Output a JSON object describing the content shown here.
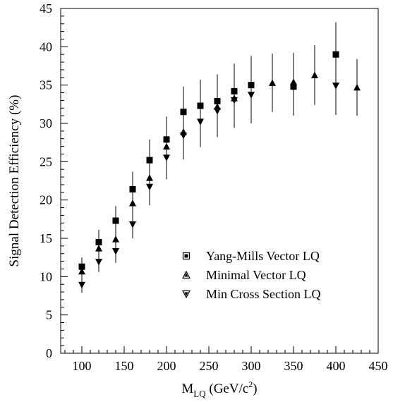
{
  "chart_data": {
    "type": "scatter",
    "xlabel": {
      "main": "M",
      "sub": "LQ",
      "unit_pre": " (GeV/c",
      "sup": "2",
      "unit_post": ")"
    },
    "ylabel": "Signal Detection Efficiency (%)",
    "xlim": [
      75,
      450
    ],
    "ylim": [
      0,
      45
    ],
    "xticks": [
      100,
      150,
      200,
      250,
      300,
      350,
      400,
      450
    ],
    "yticks": [
      0,
      5,
      10,
      15,
      20,
      25,
      30,
      35,
      40,
      45
    ],
    "grid": false,
    "legend_position": "lower-right",
    "series": [
      {
        "name": "Yang-Mills Vector LQ",
        "marker": "square",
        "x": [
          100,
          120,
          140,
          160,
          180,
          200,
          220,
          240,
          260,
          280,
          300,
          350,
          400
        ],
        "y": [
          11.3,
          14.5,
          17.3,
          21.4,
          25.2,
          27.9,
          31.5,
          32.3,
          32.9,
          34.2,
          35.0,
          34.8,
          39.0
        ],
        "err": [
          1.2,
          1.6,
          1.9,
          2.3,
          2.7,
          3.0,
          3.3,
          3.4,
          3.5,
          3.6,
          3.8,
          3.8,
          4.2
        ]
      },
      {
        "name": "Minimal Vector LQ",
        "marker": "triangle-up",
        "x": [
          100,
          120,
          140,
          160,
          180,
          200,
          220,
          260,
          280,
          325,
          350,
          375,
          425
        ],
        "y": [
          10.7,
          13.7,
          14.9,
          19.6,
          22.9,
          27.0,
          28.9,
          32.2,
          33.3,
          35.3,
          35.4,
          36.3,
          34.7
        ],
        "err": [
          1.1,
          1.5,
          1.6,
          2.1,
          2.5,
          2.9,
          3.1,
          3.4,
          3.5,
          3.8,
          3.8,
          3.9,
          3.7
        ]
      },
      {
        "name": "Min Cross Section LQ",
        "marker": "triangle-down",
        "x": [
          100,
          120,
          140,
          160,
          180,
          200,
          220,
          240,
          260,
          280,
          300,
          400
        ],
        "y": [
          8.9,
          11.9,
          13.3,
          16.8,
          21.7,
          25.5,
          28.4,
          30.2,
          31.6,
          33.0,
          33.7,
          34.9
        ],
        "err": [
          1.0,
          1.3,
          1.5,
          1.8,
          2.4,
          2.8,
          3.1,
          3.3,
          3.4,
          3.6,
          3.7,
          3.8
        ]
      }
    ]
  }
}
